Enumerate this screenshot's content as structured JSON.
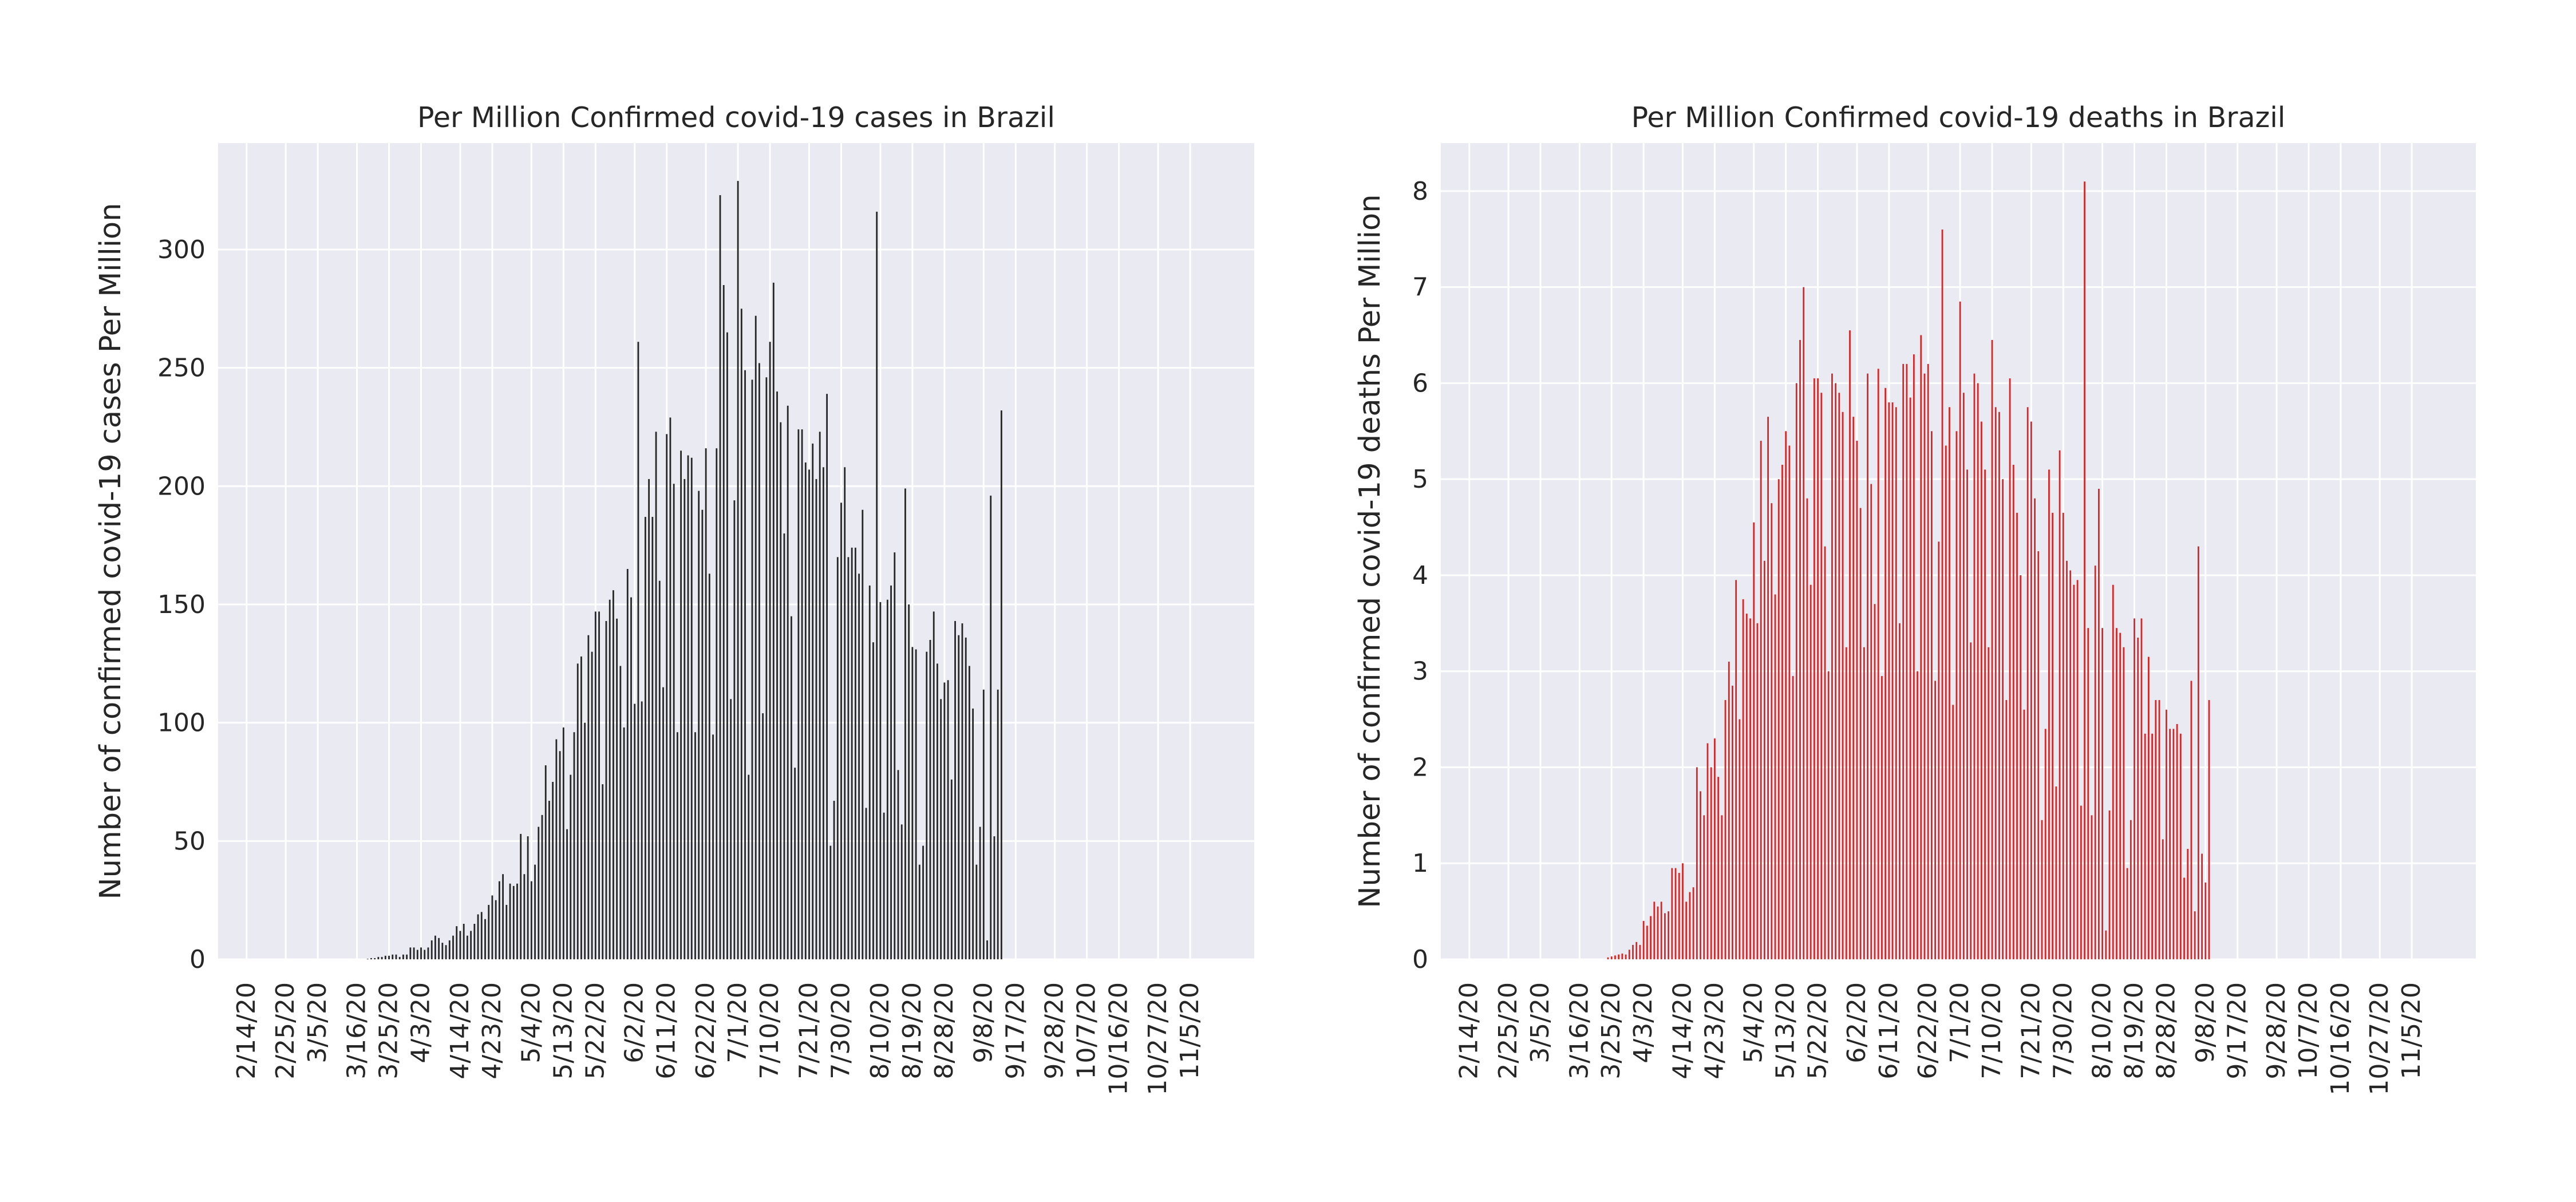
{
  "chart_data": [
    {
      "type": "bar",
      "title": "Per Million Confirmed covid-19 cases in Brazil",
      "ylabel": "Number of confirmed covid-19 cases Per Million",
      "xlabel": "",
      "ylim": [
        0,
        345
      ],
      "yticks": [
        0,
        50,
        100,
        150,
        200,
        250,
        300
      ],
      "grid": true,
      "color": "#262626",
      "x_start": "2020-02-14",
      "x_end": "2020-11-14",
      "xticks": [
        "2/14/20",
        "2/25/20",
        "3/5/20",
        "3/16/20",
        "3/25/20",
        "4/3/20",
        "4/14/20",
        "4/23/20",
        "5/4/20",
        "5/13/20",
        "5/22/20",
        "6/2/20",
        "6/11/20",
        "6/22/20",
        "7/1/20",
        "7/10/20",
        "7/21/20",
        "7/30/20",
        "8/10/20",
        "8/19/20",
        "8/28/20",
        "9/8/20",
        "9/17/20",
        "9/28/20",
        "10/7/20",
        "10/16/20",
        "10/27/20",
        "11/5/20"
      ],
      "series": [
        {
          "values": [
            0,
            0,
            0,
            0,
            0,
            0,
            0,
            0,
            0,
            0,
            0,
            0,
            0,
            0,
            0,
            0,
            0,
            0,
            0,
            0,
            0,
            0,
            0,
            0,
            0,
            0,
            0,
            0,
            0,
            0,
            0,
            0,
            0,
            0,
            0.2,
            0.5,
            0.5,
            1,
            1,
            1.5,
            1.5,
            2,
            2,
            1,
            2,
            2,
            5,
            5,
            4,
            5,
            4,
            5,
            8,
            10,
            9,
            7,
            6,
            8,
            10,
            14,
            12,
            15,
            10,
            12,
            15,
            19,
            20,
            17,
            23,
            27,
            25,
            33,
            36,
            23,
            32,
            31,
            32,
            53,
            36,
            52,
            33,
            40,
            56,
            61,
            82,
            67,
            75,
            93,
            88,
            98,
            55,
            78,
            96,
            125,
            128,
            100,
            137,
            130,
            147,
            147,
            74,
            143,
            152,
            156,
            144,
            124,
            98,
            165,
            153,
            108,
            261,
            109,
            187,
            203,
            187,
            223,
            160,
            115,
            222,
            229,
            201,
            96,
            215,
            203,
            213,
            212,
            96,
            198,
            190,
            216,
            163,
            95,
            216,
            323,
            285,
            265,
            110,
            194,
            329,
            275,
            249,
            78,
            245,
            272,
            252,
            104,
            246,
            261,
            286,
            240,
            227,
            180,
            234,
            145,
            81,
            224,
            224,
            210,
            207,
            218,
            203,
            223,
            208,
            239,
            48,
            67,
            170,
            193,
            208,
            170,
            174,
            174,
            163,
            190,
            64,
            158,
            134,
            316,
            151,
            62,
            152,
            158,
            172,
            80,
            57,
            199,
            150,
            132,
            131,
            40,
            48,
            130,
            135,
            147,
            125,
            110,
            117,
            118,
            76,
            143,
            137,
            142,
            136,
            124,
            106,
            40,
            56,
            114,
            8,
            196,
            52,
            114,
            232
          ]
        }
      ]
    },
    {
      "type": "bar",
      "title": "Per Million Confirmed covid-19 deaths in Brazil",
      "ylabel": "Number of confirmed covid-19 deaths Per Million",
      "xlabel": "",
      "ylim": [
        0,
        8.5
      ],
      "yticks": [
        0,
        1,
        2,
        3,
        4,
        5,
        6,
        7,
        8
      ],
      "grid": true,
      "color": "#d62728",
      "x_start": "2020-02-14",
      "x_end": "2020-11-14",
      "xticks": [
        "2/14/20",
        "2/25/20",
        "3/5/20",
        "3/16/20",
        "3/25/20",
        "4/3/20",
        "4/14/20",
        "4/23/20",
        "5/4/20",
        "5/13/20",
        "5/22/20",
        "6/2/20",
        "6/11/20",
        "6/22/20",
        "7/1/20",
        "7/10/20",
        "7/21/20",
        "7/30/20",
        "8/10/20",
        "8/19/20",
        "8/28/20",
        "9/8/20",
        "9/17/20",
        "9/28/20",
        "10/7/20",
        "10/16/20",
        "10/27/20",
        "11/5/20"
      ],
      "series": [
        {
          "values": [
            0,
            0,
            0,
            0,
            0,
            0,
            0,
            0,
            0,
            0,
            0,
            0,
            0,
            0,
            0,
            0,
            0,
            0,
            0,
            0,
            0,
            0,
            0,
            0,
            0,
            0,
            0,
            0,
            0,
            0,
            0,
            0,
            0,
            0,
            0,
            0,
            0,
            0,
            0,
            0.02,
            0.03,
            0.04,
            0.05,
            0.06,
            0.05,
            0.1,
            0.15,
            0.18,
            0.15,
            0.4,
            0.35,
            0.45,
            0.6,
            0.55,
            0.6,
            0.48,
            0.5,
            0.95,
            0.95,
            0.9,
            1.0,
            0.6,
            0.7,
            0.75,
            2.0,
            1.75,
            1.5,
            2.25,
            2.0,
            2.3,
            1.9,
            1.5,
            2.7,
            3.1,
            2.85,
            3.95,
            2.5,
            3.75,
            3.6,
            3.55,
            4.55,
            3.5,
            5.4,
            4.15,
            5.65,
            4.75,
            3.8,
            5.0,
            5.15,
            5.5,
            5.35,
            2.95,
            6.0,
            6.45,
            7.0,
            4.8,
            3.9,
            6.05,
            6.05,
            5.9,
            4.3,
            3.0,
            6.1,
            6.0,
            5.9,
            5.7,
            3.25,
            6.55,
            5.65,
            5.4,
            4.7,
            3.25,
            6.1,
            4.95,
            3.7,
            6.15,
            2.95,
            5.95,
            5.8,
            5.8,
            5.75,
            3.5,
            6.2,
            6.2,
            5.85,
            6.3,
            3.0,
            6.5,
            6.1,
            6.2,
            5.5,
            2.9,
            4.35,
            7.6,
            5.35,
            5.75,
            2.65,
            5.5,
            6.85,
            5.9,
            5.1,
            3.3,
            6.1,
            6.0,
            5.6,
            5.1,
            3.25,
            6.45,
            5.75,
            5.7,
            5.0,
            2.7,
            6.05,
            5.15,
            4.65,
            4.0,
            2.6,
            5.75,
            5.6,
            4.8,
            4.25,
            1.45,
            2.4,
            5.1,
            4.65,
            1.8,
            5.3,
            4.65,
            4.15,
            4.05,
            3.9,
            3.95,
            1.6,
            8.1,
            3.45,
            1.5,
            4.1,
            4.9,
            3.45,
            0.3,
            1.55,
            3.9,
            3.45,
            3.4,
            3.25,
            0.95,
            1.45,
            3.55,
            3.35,
            3.55,
            2.35,
            3.15,
            2.35,
            2.7,
            2.7,
            1.25,
            2.6,
            2.4,
            2.4,
            2.45,
            2.35,
            0.85,
            1.15,
            2.9,
            0.5,
            4.3,
            1.1,
            0.8,
            2.7
          ]
        }
      ]
    }
  ]
}
